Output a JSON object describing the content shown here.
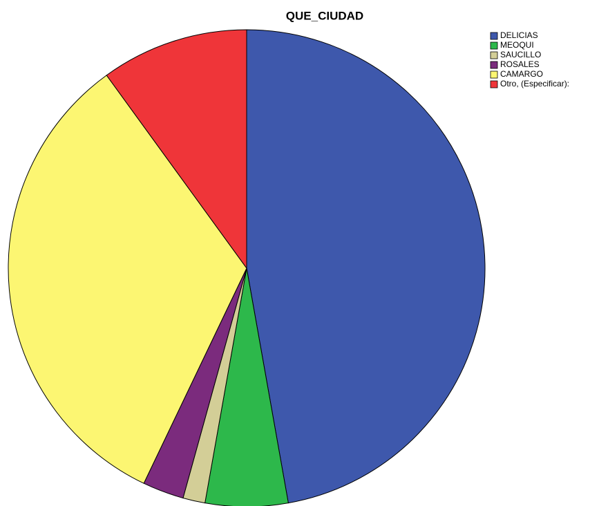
{
  "chart_data": {
    "type": "pie",
    "title": "QUE_CIUDAD",
    "categories": [
      "DELICIAS",
      "MEOQUI",
      "SAUCILLO",
      "ROSALES",
      "CAMARGO",
      "Otro, (Especificar):"
    ],
    "values": [
      47.2,
      5.6,
      1.5,
      2.8,
      32.9,
      10.0
    ],
    "colors": [
      "#3e58ac",
      "#2db84b",
      "#d3ce97",
      "#7b2b7d",
      "#fcf672",
      "#ef3539"
    ],
    "legend": "upper right"
  }
}
